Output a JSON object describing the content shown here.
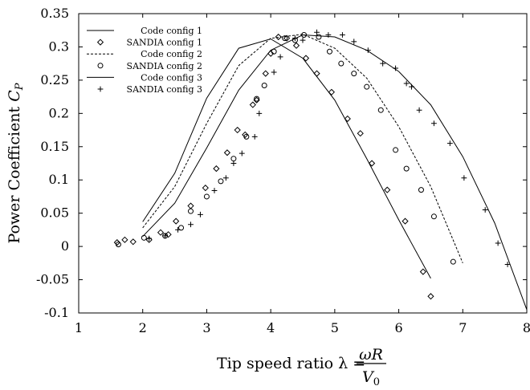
{
  "chart_data": {
    "type": "scatter",
    "xlabel": {
      "prefix": "Tip speed ratio λ = ",
      "num": "ωR",
      "den": "V",
      "den_sub": "0"
    },
    "ylabel": {
      "main": "Power Coefficient ",
      "sym": "C",
      "sub": "P"
    },
    "xlim": [
      1,
      8
    ],
    "ylim": [
      -0.1,
      0.35
    ],
    "x_ticks": [
      1,
      2,
      3,
      4,
      5,
      6,
      7,
      8
    ],
    "y_ticks": [
      -0.1,
      -0.05,
      0,
      0.05,
      0.1,
      0.15,
      0.2,
      0.25,
      0.3,
      0.35
    ],
    "x_tick_labels": [
      "1",
      "2",
      "3",
      "4",
      "5",
      "6",
      "7",
      "8"
    ],
    "y_tick_labels": [
      "-0.1",
      "-0.05",
      "0",
      "0.05",
      "0.1",
      "0.15",
      "0.2",
      "0.25",
      "0.3",
      "0.35"
    ],
    "grid": false,
    "legend_position": "top-left",
    "series": [
      {
        "name": "Code config 1",
        "style": "solid",
        "marker": "none",
        "points": [
          [
            2.0,
            0.037
          ],
          [
            2.5,
            0.11
          ],
          [
            3.0,
            0.223
          ],
          [
            3.5,
            0.298
          ],
          [
            4.0,
            0.312
          ],
          [
            4.5,
            0.283
          ],
          [
            5.0,
            0.22
          ],
          [
            5.5,
            0.132
          ],
          [
            6.0,
            0.04
          ],
          [
            6.5,
            -0.048
          ]
        ]
      },
      {
        "name": "SANDIA config 1",
        "style": "none",
        "marker": "diamond",
        "points": [
          [
            1.6,
            0.006
          ],
          [
            1.72,
            0.01
          ],
          [
            1.85,
            0.007
          ],
          [
            2.1,
            0.01
          ],
          [
            2.28,
            0.021
          ],
          [
            2.4,
            0.018
          ],
          [
            2.52,
            0.038
          ],
          [
            2.75,
            0.061
          ],
          [
            2.98,
            0.088
          ],
          [
            3.15,
            0.117
          ],
          [
            3.32,
            0.141
          ],
          [
            3.48,
            0.175
          ],
          [
            3.6,
            0.168
          ],
          [
            3.72,
            0.213
          ],
          [
            3.78,
            0.22
          ],
          [
            3.92,
            0.26
          ],
          [
            4.0,
            0.29
          ],
          [
            4.12,
            0.315
          ],
          [
            4.25,
            0.313
          ],
          [
            4.4,
            0.302
          ],
          [
            4.55,
            0.283
          ],
          [
            4.72,
            0.26
          ],
          [
            4.95,
            0.232
          ],
          [
            5.2,
            0.192
          ],
          [
            5.4,
            0.17
          ],
          [
            5.58,
            0.125
          ],
          [
            5.82,
            0.085
          ],
          [
            6.1,
            0.038
          ],
          [
            6.38,
            -0.038
          ],
          [
            6.5,
            -0.075
          ]
        ]
      },
      {
        "name": "Code config 2",
        "style": "dashed",
        "marker": "none",
        "points": [
          [
            2.0,
            0.028
          ],
          [
            2.5,
            0.09
          ],
          [
            3.0,
            0.185
          ],
          [
            3.5,
            0.272
          ],
          [
            4.0,
            0.313
          ],
          [
            4.5,
            0.319
          ],
          [
            5.0,
            0.298
          ],
          [
            5.5,
            0.253
          ],
          [
            6.0,
            0.18
          ],
          [
            6.5,
            0.09
          ],
          [
            7.0,
            -0.025
          ]
        ]
      },
      {
        "name": "SANDIA config 2",
        "style": "none",
        "marker": "circle",
        "points": [
          [
            1.62,
            0.003
          ],
          [
            2.02,
            0.013
          ],
          [
            2.35,
            0.016
          ],
          [
            2.6,
            0.028
          ],
          [
            2.75,
            0.053
          ],
          [
            3.0,
            0.075
          ],
          [
            3.22,
            0.098
          ],
          [
            3.42,
            0.132
          ],
          [
            3.62,
            0.165
          ],
          [
            3.78,
            0.222
          ],
          [
            3.9,
            0.242
          ],
          [
            4.05,
            0.293
          ],
          [
            4.22,
            0.313
          ],
          [
            4.38,
            0.31
          ],
          [
            4.52,
            0.318
          ],
          [
            4.75,
            0.315
          ],
          [
            4.92,
            0.293
          ],
          [
            5.1,
            0.275
          ],
          [
            5.3,
            0.26
          ],
          [
            5.5,
            0.24
          ],
          [
            5.72,
            0.205
          ],
          [
            5.95,
            0.145
          ],
          [
            6.12,
            0.117
          ],
          [
            6.35,
            0.085
          ],
          [
            6.55,
            0.045
          ],
          [
            6.85,
            -0.023
          ]
        ]
      },
      {
        "name": "Code config 3",
        "style": "solid",
        "marker": "none",
        "points": [
          [
            2.0,
            0.015
          ],
          [
            2.5,
            0.065
          ],
          [
            3.0,
            0.148
          ],
          [
            3.5,
            0.235
          ],
          [
            4.0,
            0.295
          ],
          [
            4.5,
            0.318
          ],
          [
            5.0,
            0.315
          ],
          [
            5.5,
            0.295
          ],
          [
            6.0,
            0.263
          ],
          [
            6.5,
            0.213
          ],
          [
            7.0,
            0.135
          ],
          [
            7.5,
            0.035
          ],
          [
            8.0,
            -0.095
          ]
        ]
      },
      {
        "name": "SANDIA config 3",
        "style": "none",
        "marker": "plus",
        "points": [
          [
            2.1,
            0.012
          ],
          [
            2.35,
            0.016
          ],
          [
            2.55,
            0.025
          ],
          [
            2.75,
            0.033
          ],
          [
            2.9,
            0.048
          ],
          [
            3.12,
            0.084
          ],
          [
            3.3,
            0.103
          ],
          [
            3.42,
            0.125
          ],
          [
            3.55,
            0.14
          ],
          [
            3.75,
            0.165
          ],
          [
            3.82,
            0.2
          ],
          [
            4.05,
            0.262
          ],
          [
            4.15,
            0.285
          ],
          [
            4.38,
            0.313
          ],
          [
            4.5,
            0.31
          ],
          [
            4.72,
            0.322
          ],
          [
            4.9,
            0.318
          ],
          [
            5.12,
            0.318
          ],
          [
            5.3,
            0.308
          ],
          [
            5.52,
            0.295
          ],
          [
            5.75,
            0.275
          ],
          [
            5.95,
            0.268
          ],
          [
            6.12,
            0.245
          ],
          [
            6.2,
            0.24
          ],
          [
            6.32,
            0.205
          ],
          [
            6.55,
            0.185
          ],
          [
            6.8,
            0.155
          ],
          [
            7.02,
            0.103
          ],
          [
            7.35,
            0.055
          ],
          [
            7.55,
            0.005
          ],
          [
            7.7,
            -0.027
          ]
        ]
      }
    ]
  }
}
